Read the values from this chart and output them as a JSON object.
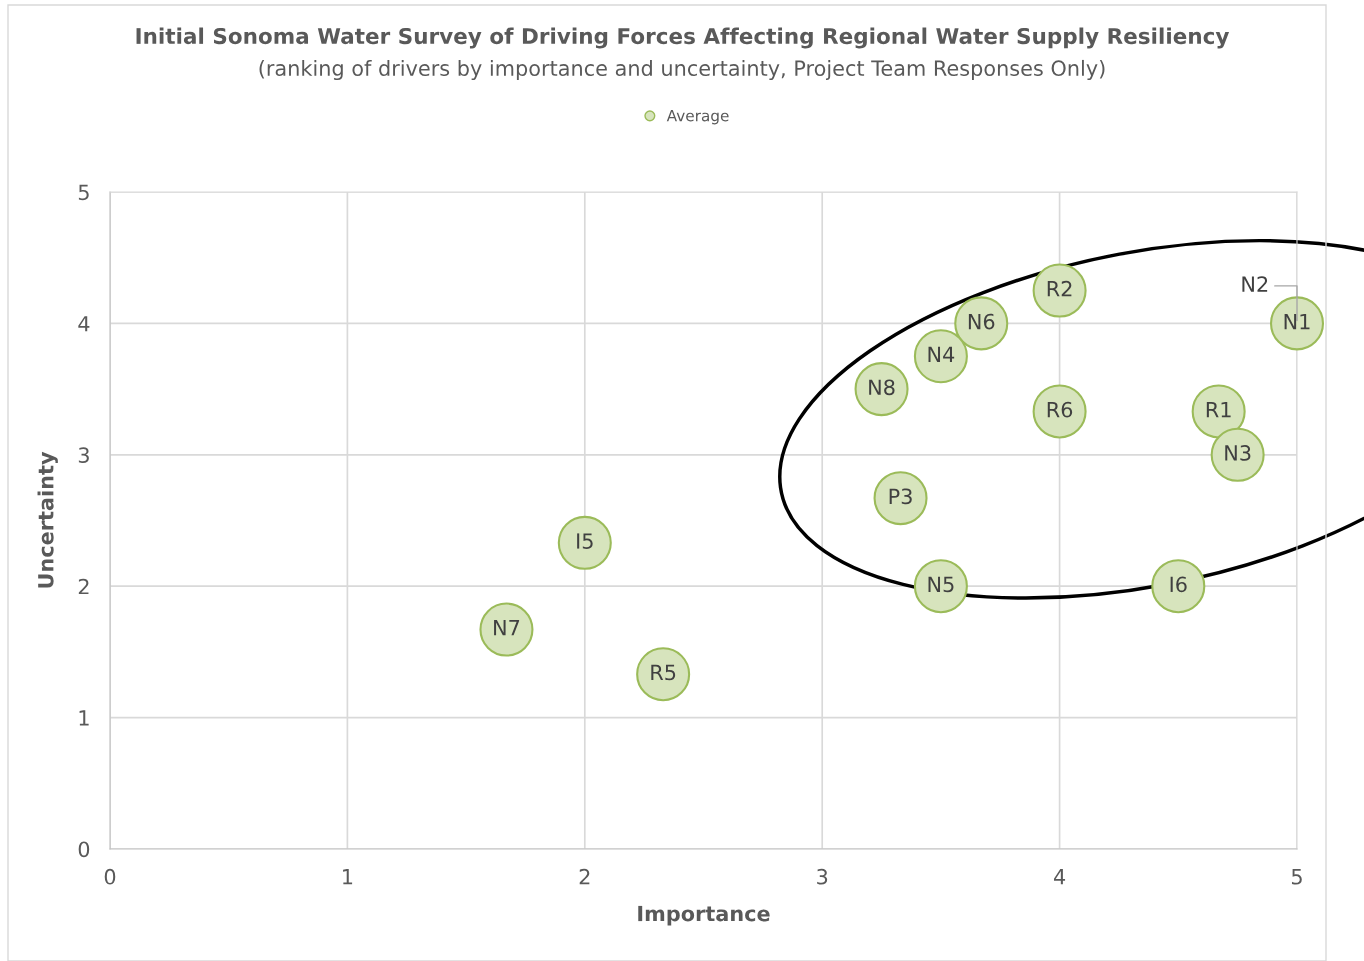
{
  "chart_data": {
    "type": "scatter",
    "title": "Initial Sonoma Water Survey of Driving Forces Affecting Regional Water Supply Resiliency",
    "subtitle": "(ranking of drivers by importance and uncertainty, Project Team Responses Only)",
    "xlabel": "Importance",
    "ylabel": "Uncertainty",
    "x": [
      4.0,
      3.67,
      3.5,
      3.25,
      4.0,
      4.67,
      4.75,
      5.0,
      3.33,
      2.0,
      3.5,
      4.5,
      1.67,
      2.33
    ],
    "series": [
      {
        "name": "Average",
        "color": "#9bbb59",
        "values": [
          4.25,
          4.0,
          3.75,
          3.5,
          3.33,
          3.33,
          3.0,
          4.0,
          2.67,
          2.33,
          2.0,
          2.0,
          1.67,
          1.33
        ]
      }
    ],
    "annotations": [
      {
        "text": "R2",
        "x": 4.0,
        "y": 4.25
      },
      {
        "text": "N6",
        "x": 3.67,
        "y": 4.0
      },
      {
        "text": "N4",
        "x": 3.5,
        "y": 3.75
      },
      {
        "text": "N8",
        "x": 3.25,
        "y": 3.5
      },
      {
        "text": "R6",
        "x": 4.0,
        "y": 3.33
      },
      {
        "text": "R1",
        "x": 4.67,
        "y": 3.33
      },
      {
        "text": "N3",
        "x": 4.75,
        "y": 3.0
      },
      {
        "text": "N1",
        "x": 5.0,
        "y": 4.0
      },
      {
        "text": "N2",
        "x": 5.0,
        "y": 4.0
      },
      {
        "text": "P3",
        "x": 3.33,
        "y": 2.67
      },
      {
        "text": "I5",
        "x": 2.0,
        "y": 2.33
      },
      {
        "text": "N5",
        "x": 3.5,
        "y": 2.0
      },
      {
        "text": "I6",
        "x": 4.5,
        "y": 2.0
      },
      {
        "text": "N7",
        "x": 1.67,
        "y": 1.67
      },
      {
        "text": "R5",
        "x": 2.33,
        "y": 1.33
      }
    ],
    "xlim": [
      0,
      5
    ],
    "ylim": [
      0,
      5
    ],
    "xticks": [
      0,
      1,
      2,
      3,
      4,
      5
    ],
    "yticks": [
      0,
      1,
      2,
      3,
      4,
      5
    ],
    "grid": true,
    "legend": "top",
    "marker": "circle"
  }
}
